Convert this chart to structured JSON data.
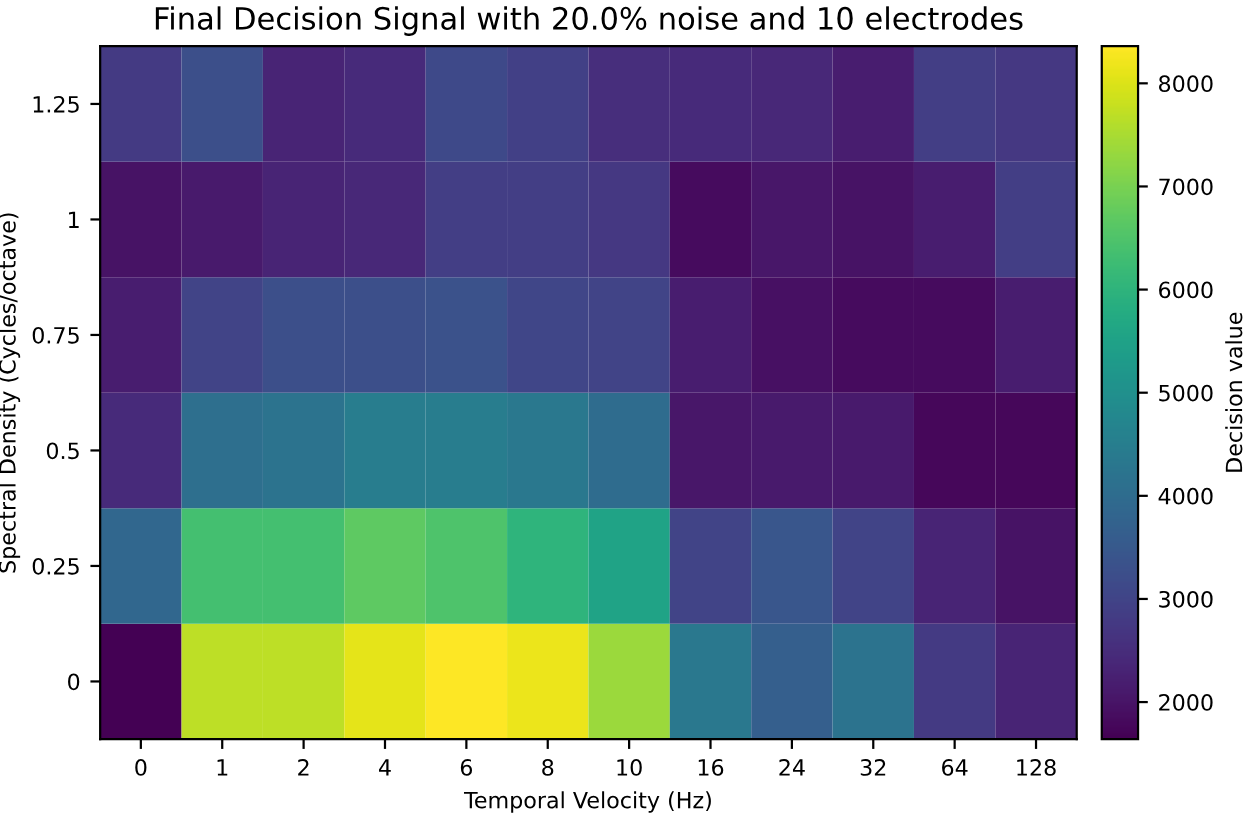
{
  "chart_data": {
    "type": "heatmap",
    "title": "Final Decision Signal with 20.0% noise and 10 electrodes",
    "xlabel": "Temporal Velocity (Hz)",
    "ylabel": "Spectral Density (Cycles/octave)",
    "clabel": "Decision value",
    "categories": [
      "0",
      "1",
      "2",
      "4",
      "6",
      "8",
      "10",
      "16",
      "24",
      "32",
      "64",
      "128"
    ],
    "y_categories": [
      "1.25",
      "1",
      "0.75",
      "0.5",
      "0.25",
      "0"
    ],
    "cells": [
      [
        2780,
        3250,
        2310,
        2450,
        3120,
        2920,
        2510,
        2450,
        2380,
        2180,
        2850,
        2720
      ],
      [
        1980,
        2110,
        2310,
        2380,
        2850,
        2850,
        2720,
        1840,
        2040,
        1980,
        2180,
        2850
      ],
      [
        2180,
        2980,
        3250,
        3250,
        3320,
        3050,
        2980,
        2180,
        1910,
        1840,
        1840,
        2180
      ],
      [
        2450,
        4060,
        4190,
        4460,
        4460,
        4330,
        3990,
        2040,
        2110,
        2110,
        1770,
        1770
      ],
      [
        3860,
        6340,
        6340,
        6680,
        6480,
        6010,
        5540,
        2980,
        3450,
        2980,
        2310,
        1980
      ],
      [
        1640,
        7690,
        7690,
        8090,
        8360,
        8150,
        7350,
        4330,
        3660,
        4190,
        2780,
        2310
      ]
    ],
    "clim": [
      1640,
      8360
    ],
    "cticks": [
      2000,
      3000,
      4000,
      5000,
      6000,
      7000,
      8000
    ]
  }
}
